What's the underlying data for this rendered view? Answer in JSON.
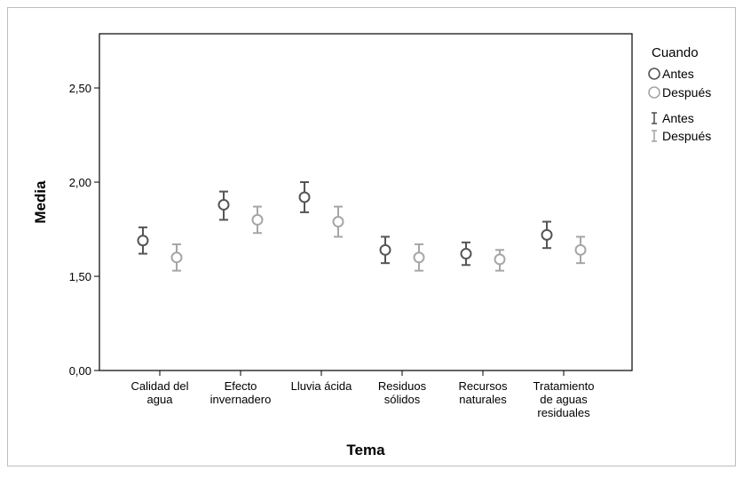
{
  "chart_data": {
    "type": "scatter",
    "subtype": "mean-with-error-bars",
    "xlabel": "Tema",
    "ylabel": "Media",
    "ylim": [
      0,
      2.8
    ],
    "axis_break": true,
    "y_ticks": [
      {
        "value": 0.0,
        "label": "0,00"
      },
      {
        "value": 1.5,
        "label": "1,50"
      },
      {
        "value": 2.0,
        "label": "2,00"
      },
      {
        "value": 2.5,
        "label": "2,50"
      }
    ],
    "categories": [
      [
        "Calidad del",
        "agua"
      ],
      [
        "Efecto",
        "invernadero"
      ],
      [
        "Lluvia ácida"
      ],
      [
        "Residuos",
        "sólidos"
      ],
      [
        "Recursos",
        "naturales"
      ],
      [
        "Tratamiento",
        "de aguas",
        "residuales"
      ]
    ],
    "series": [
      {
        "name": "Antes",
        "color": "#555555",
        "means": [
          1.69,
          1.88,
          1.92,
          1.64,
          1.62,
          1.72
        ],
        "lower": [
          1.62,
          1.8,
          1.84,
          1.57,
          1.56,
          1.65
        ],
        "upper": [
          1.76,
          1.95,
          2.0,
          1.71,
          1.68,
          1.79
        ]
      },
      {
        "name": "Después",
        "color": "#a6a6a6",
        "means": [
          1.6,
          1.8,
          1.79,
          1.6,
          1.59,
          1.64
        ],
        "lower": [
          1.53,
          1.73,
          1.71,
          1.53,
          1.53,
          1.57
        ],
        "upper": [
          1.67,
          1.87,
          1.87,
          1.67,
          1.64,
          1.71
        ]
      }
    ],
    "legend": {
      "title": "Cuando",
      "placement": "right",
      "items": [
        {
          "label": "Antes",
          "marker": "circle",
          "color": "#555555"
        },
        {
          "label": "Después",
          "marker": "circle",
          "color": "#a6a6a6"
        },
        {
          "label": "Antes",
          "marker": "errorbar",
          "color": "#555555"
        },
        {
          "label": "Después",
          "marker": "errorbar",
          "color": "#a6a6a6"
        }
      ]
    }
  }
}
